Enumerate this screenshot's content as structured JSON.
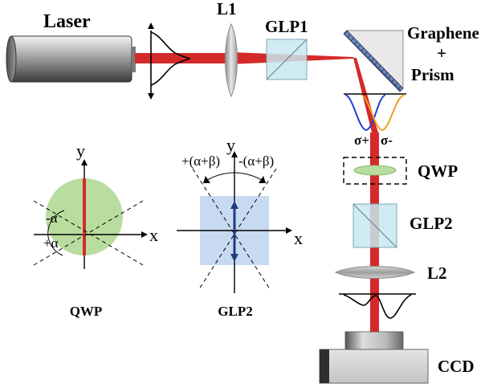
{
  "labels": {
    "laser": "Laser",
    "l1": "L1",
    "glp1": "GLP1",
    "graphene_line1": "Graphene",
    "graphene_line2": "+",
    "graphene_line3": "Prism",
    "sigma_plus": "σ+",
    "sigma_minus": "σ-",
    "qwp": "QWP",
    "glp2": "GLP2",
    "l2": "L2",
    "ccd": "CCD"
  },
  "qwp_inset": {
    "title": "QWP",
    "axis_x": "x",
    "axis_y": "y",
    "angle_minus": "-α",
    "angle_plus": "+α"
  },
  "glp2_inset": {
    "title": "GLP2",
    "axis_x": "x",
    "axis_y": "y",
    "angle_plus": "+(α+β)",
    "angle_minus": "-(α+β)"
  },
  "colors": {
    "beam": "#d42a2a",
    "sigma_plus_curve": "#1f3fd6",
    "sigma_minus_curve": "#f0a020",
    "qwp_disk": "#b9dc9f",
    "glp2_square": "#c8d9f2",
    "optics_glass": "#c8e8ee"
  },
  "icons": [
    "laser-icon",
    "lens-icon",
    "polarizer-cube-icon",
    "prism-icon",
    "camera-icon"
  ]
}
